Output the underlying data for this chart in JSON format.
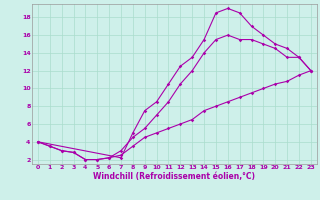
{
  "xlabel": "Windchill (Refroidissement éolien,°C)",
  "bg_color": "#cef0ea",
  "line_color": "#aa00aa",
  "grid_color": "#aaddcc",
  "xlim": [
    -0.5,
    23.5
  ],
  "ylim": [
    1.5,
    19.5
  ],
  "xticks": [
    0,
    1,
    2,
    3,
    4,
    5,
    6,
    7,
    8,
    9,
    10,
    11,
    12,
    13,
    14,
    15,
    16,
    17,
    18,
    19,
    20,
    21,
    22,
    23
  ],
  "yticks": [
    2,
    4,
    6,
    8,
    10,
    12,
    14,
    16,
    18
  ],
  "line1_x": [
    0,
    1,
    2,
    3,
    4,
    5,
    6,
    7,
    8,
    9,
    10,
    11,
    12,
    13,
    14,
    15,
    16,
    17,
    18,
    19,
    20,
    21,
    22,
    23
  ],
  "line1_y": [
    4,
    3.5,
    3,
    2.8,
    2,
    2,
    2.2,
    3,
    4.5,
    5.5,
    7,
    8.5,
    10.5,
    12,
    14,
    15.5,
    16,
    15.5,
    15.5,
    15,
    14.5,
    13.5,
    13.5,
    12
  ],
  "line2_x": [
    0,
    1,
    2,
    3,
    4,
    5,
    6,
    7,
    8,
    9,
    10,
    11,
    12,
    13,
    14,
    15,
    16,
    17,
    18,
    19,
    20,
    21,
    22,
    23
  ],
  "line2_y": [
    4,
    3.5,
    3,
    2.8,
    2,
    2,
    2.2,
    2.5,
    3.5,
    4.5,
    5,
    5.5,
    6,
    6.5,
    7.5,
    8,
    8.5,
    9,
    9.5,
    10,
    10.5,
    10.8,
    11.5,
    12
  ],
  "line3_x": [
    0,
    7,
    8,
    9,
    10,
    11,
    12,
    13,
    14,
    15,
    16,
    17,
    18,
    19,
    20,
    21,
    22,
    23
  ],
  "line3_y": [
    4,
    2.2,
    5,
    7.5,
    8.5,
    10.5,
    12.5,
    13.5,
    15.5,
    18.5,
    19,
    18.5,
    17,
    16,
    15,
    14.5,
    13.5,
    12
  ]
}
